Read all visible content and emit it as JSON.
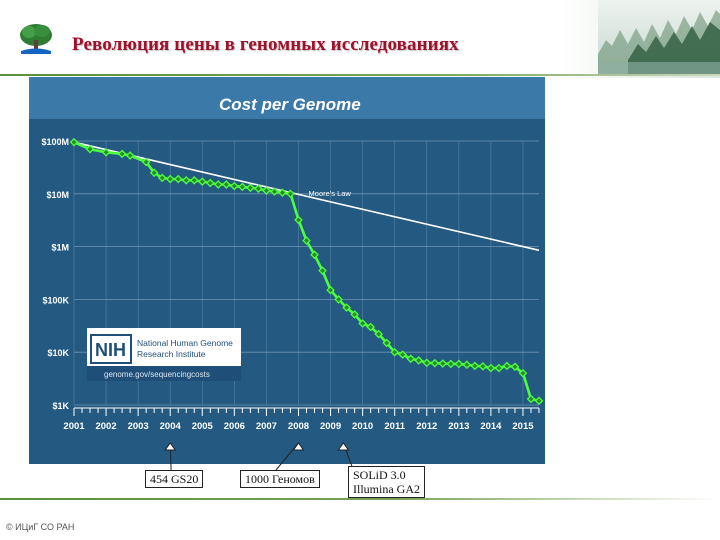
{
  "slide": {
    "title": "Революция цены в геномных исследованиях",
    "footer": "© ИЦиГ СО РАН"
  },
  "colors": {
    "title": "#a0102a",
    "chart_bg": "#245a82",
    "grid": "#6f93b3",
    "series": "#4cff3c",
    "moore": "#ffffff"
  },
  "nih": {
    "logo_text": "NIH",
    "line1": "National Human Genome",
    "line2": "Research Institute",
    "url": "genome.gov/sequencingcosts"
  },
  "callouts": [
    {
      "label": "454 GS20",
      "year": 2004.0
    },
    {
      "label": "1000 Геномов",
      "year": 2008.0
    },
    {
      "label": "SOLiD 3.0",
      "label2": "Illumina GA2",
      "year": 2009.4
    }
  ],
  "chart_data": {
    "type": "line",
    "title": "Cost per Genome",
    "scale": "log10",
    "y_ticks": [
      {
        "label": "$100M",
        "value": 100000000
      },
      {
        "label": "$10M",
        "value": 10000000
      },
      {
        "label": "$1M",
        "value": 1000000
      },
      {
        "label": "$100K",
        "value": 100000
      },
      {
        "label": "$10K",
        "value": 10000
      },
      {
        "label": "$1K",
        "value": 1000
      }
    ],
    "x_ticks": [
      "2001",
      "2002",
      "2003",
      "2004",
      "2005",
      "2006",
      "2007",
      "2008",
      "2009",
      "2010",
      "2011",
      "2012",
      "2013",
      "2014",
      "2015"
    ],
    "xlim": [
      2001,
      2015.5
    ],
    "ylim": [
      1000,
      100000000
    ],
    "series": [
      {
        "name": "Cost per Genome",
        "x": [
          2001.0,
          2001.5,
          2002.0,
          2002.5,
          2002.75,
          2003.25,
          2003.5,
          2003.75,
          2004.0,
          2004.25,
          2004.5,
          2004.75,
          2005.0,
          2005.25,
          2005.5,
          2005.75,
          2006.0,
          2006.25,
          2006.5,
          2006.75,
          2007.0,
          2007.25,
          2007.5,
          2007.75,
          2008.0,
          2008.25,
          2008.5,
          2008.75,
          2009.0,
          2009.25,
          2009.5,
          2009.75,
          2010.0,
          2010.25,
          2010.5,
          2010.75,
          2011.0,
          2011.25,
          2011.5,
          2011.75,
          2012.0,
          2012.25,
          2012.5,
          2012.75,
          2013.0,
          2013.25,
          2013.5,
          2013.75,
          2014.0,
          2014.25,
          2014.5,
          2014.75,
          2015.0,
          2015.25,
          2015.5
        ],
        "y": [
          95000000,
          70000000,
          61000000,
          57000000,
          53000000,
          40000000,
          25000000,
          20000000,
          19000000,
          19000000,
          18000000,
          18000000,
          17000000,
          16000000,
          15000000,
          15000000,
          14000000,
          13500000,
          13000000,
          12500000,
          11500000,
          11000000,
          10500000,
          10000000,
          3200000,
          1300000,
          700000,
          350000,
          150000,
          100000,
          70000,
          52000,
          35000,
          30000,
          22000,
          15000,
          10000,
          9000,
          7500,
          7000,
          6300,
          6200,
          6100,
          6000,
          6000,
          5800,
          5500,
          5400,
          5000,
          5000,
          5500,
          5300,
          4000,
          1300,
          1200
        ]
      },
      {
        "name": "Moore's Law",
        "x": [
          2001,
          2015.5
        ],
        "y": [
          95000000,
          850000
        ]
      }
    ]
  }
}
